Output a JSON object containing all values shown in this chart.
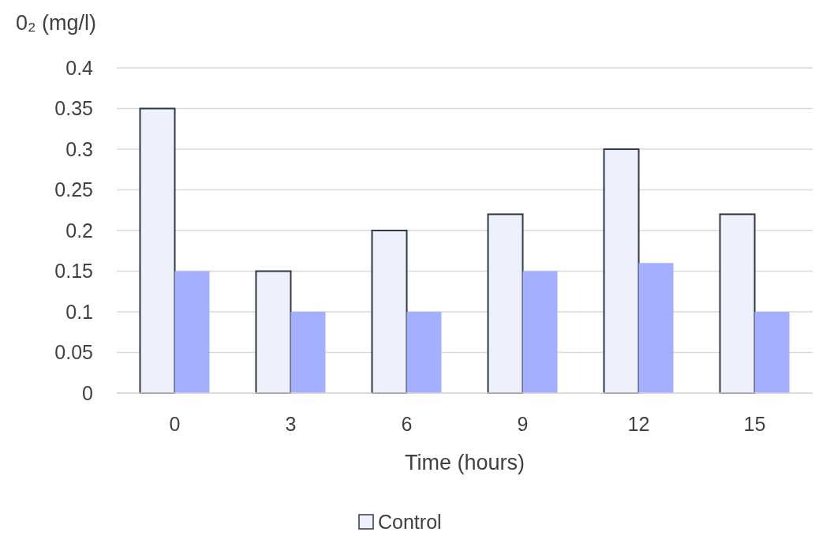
{
  "chart_data": {
    "type": "bar",
    "ylabel": "0₂ (mg/l)",
    "xlabel": "Time (hours)",
    "categories": [
      "0",
      "3",
      "6",
      "9",
      "12",
      "15"
    ],
    "series": [
      {
        "name": "Control",
        "color": "#eef0fc",
        "values": [
          0.35,
          0.15,
          0.2,
          0.22,
          0.3,
          0.22
        ]
      },
      {
        "color": "#a4b0ff",
        "values": [
          0.15,
          0.1,
          0.1,
          0.15,
          0.16,
          0.1
        ]
      }
    ],
    "ylim": [
      0,
      0.4
    ],
    "yticks": [
      0,
      0.05,
      0.1,
      0.15,
      0.2,
      0.25,
      0.3,
      0.35,
      0.4
    ],
    "grid": "y",
    "legend": "bottom"
  }
}
